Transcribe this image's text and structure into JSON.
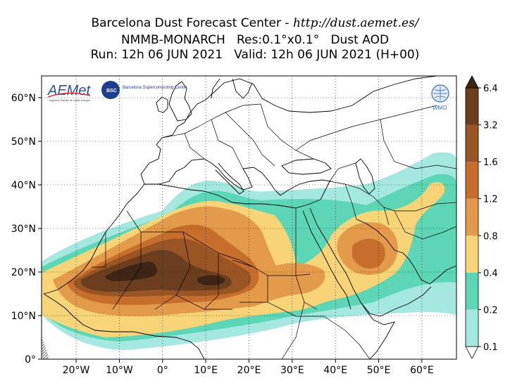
{
  "title": {
    "line1_prefix": "Barcelona Dust Forecast Center - ",
    "line1_url": "http://dust.aemet.es/",
    "line2": "NMMB-MONARCH   Res:0.1°x0.1°   Dust AOD",
    "line3": "Run: 12h 06 JUN 2021   Valid: 12h 06 JUN 2021 (H+00)"
  },
  "map": {
    "lon_range": [
      -28,
      68
    ],
    "lat_range": [
      0,
      65
    ],
    "lat_ticks": [
      {
        "value": 60,
        "label": "60°N"
      },
      {
        "value": 50,
        "label": "50°N"
      },
      {
        "value": 40,
        "label": "40°N"
      },
      {
        "value": 30,
        "label": "30°N"
      },
      {
        "value": 20,
        "label": "20°N"
      },
      {
        "value": 10,
        "label": "10°N"
      },
      {
        "value": 0,
        "label": "0°"
      }
    ],
    "lon_ticks": [
      {
        "value": -20,
        "label": "20°W"
      },
      {
        "value": -10,
        "label": "10°W"
      },
      {
        "value": 0,
        "label": "0°"
      },
      {
        "value": 10,
        "label": "10°E"
      },
      {
        "value": 20,
        "label": "20°E"
      },
      {
        "value": 30,
        "label": "30°E"
      },
      {
        "value": 40,
        "label": "40°E"
      },
      {
        "value": 50,
        "label": "50°E"
      },
      {
        "value": 60,
        "label": "60°E"
      }
    ],
    "grid": true
  },
  "colorbar": {
    "levels": [
      "0.1",
      "0.2",
      "0.4",
      "0.8",
      "1.2",
      "1.6",
      "3.2",
      "6.4"
    ],
    "colors": [
      "#a5e8df",
      "#5dd6b6",
      "#f8d479",
      "#e39a4a",
      "#c86e2c",
      "#9a5524",
      "#6a3e1f",
      "#3e2515"
    ]
  },
  "logos": {
    "aemet": "AEMet",
    "aemet_sub": "Agencia Estatal de Meteorología",
    "bsc": "BSC",
    "bsc_text": "Barcelona Supercomputing Center",
    "wmo": "WMO"
  }
}
